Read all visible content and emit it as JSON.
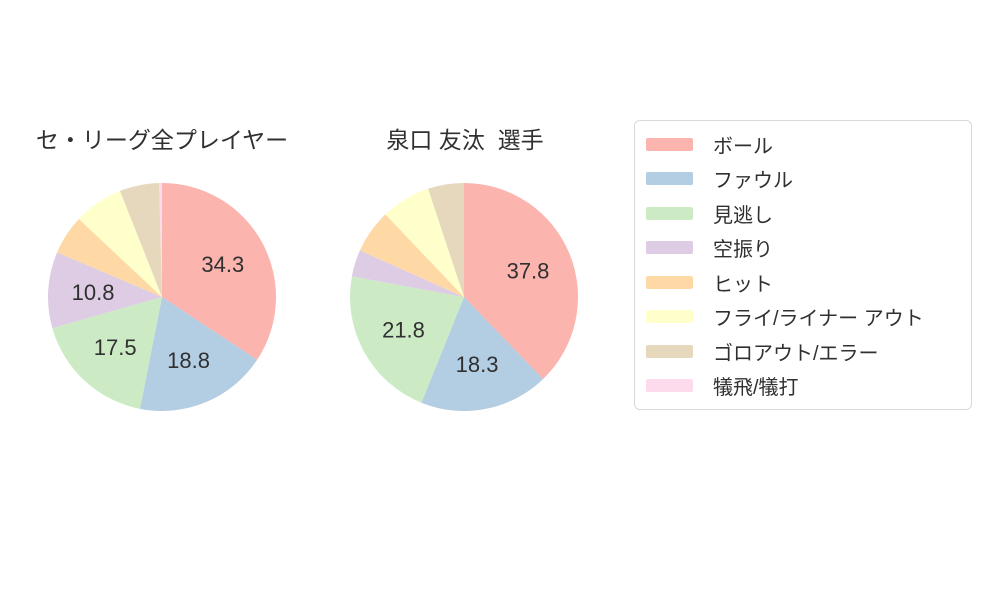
{
  "chart_data": [
    {
      "type": "pie",
      "title": "セ・リーグ全プレイヤー",
      "categories": [
        "ボール",
        "ファウル",
        "見逃し",
        "空振り",
        "ヒット",
        "フライ/ライナー アウト",
        "ゴロアウト/エラー",
        "犠飛/犠打"
      ],
      "values": [
        34.3,
        18.8,
        17.5,
        10.8,
        5.6,
        7.0,
        5.6,
        0.4
      ],
      "visible_value_labels": [
        "34.3",
        "18.8",
        "17.5",
        "10.8"
      ],
      "value_label_min": 10,
      "start_angle": "top",
      "direction": "clockwise"
    },
    {
      "type": "pie",
      "title": "泉口 友汰  選手",
      "categories": [
        "ボール",
        "ファウル",
        "見逃し",
        "空振り",
        "ヒット",
        "フライ/ライナー アウト",
        "ゴロアウト/エラー",
        "犠飛/犠打"
      ],
      "values": [
        37.8,
        18.3,
        21.8,
        3.8,
        6.2,
        7.0,
        5.1,
        0.0
      ],
      "visible_value_labels": [
        "37.8",
        "18.3",
        "21.8"
      ],
      "value_label_min": 10,
      "start_angle": "top",
      "direction": "clockwise"
    }
  ],
  "palette": [
    "#fbb4ae",
    "#b3cde3",
    "#ccebc5",
    "#decbe4",
    "#fed9a6",
    "#ffffcc",
    "#e5d8bd",
    "#fddaec"
  ],
  "legend": {
    "position": "right",
    "border_color": "#d9d9d9",
    "items": [
      {
        "label": "ボール",
        "color": "#fbb4ae"
      },
      {
        "label": "ファウル",
        "color": "#b3cde3"
      },
      {
        "label": "見逃し",
        "color": "#ccebc5"
      },
      {
        "label": "空振り",
        "color": "#decbe4"
      },
      {
        "label": "ヒット",
        "color": "#fed9a6"
      },
      {
        "label": "フライ/ライナー アウト",
        "color": "#ffffcc"
      },
      {
        "label": "ゴロアウト/エラー",
        "color": "#e5d8bd"
      },
      {
        "label": "犠飛/犠打",
        "color": "#fddaec"
      }
    ]
  },
  "style": {
    "background": "#ffffff",
    "text_color": "#303030"
  }
}
